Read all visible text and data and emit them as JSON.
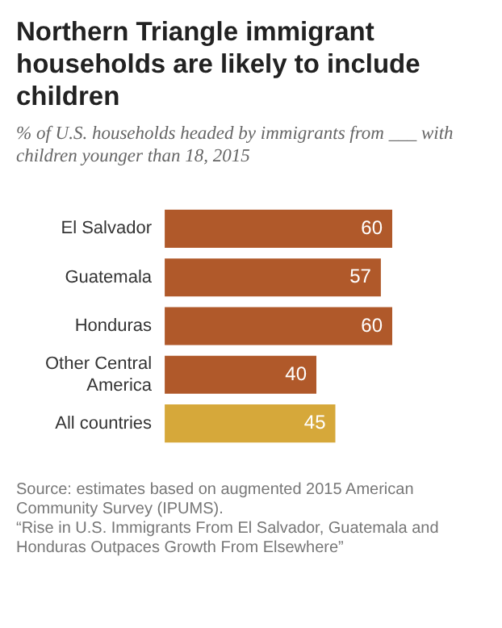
{
  "chart_data": {
    "type": "bar",
    "orientation": "horizontal",
    "title": "Northern Triangle immigrant households are likely to include children",
    "subtitle": "% of U.S. households headed by immigrants from ___ with children younger than 18, 2015",
    "categories": [
      "El Salvador",
      "Guatemala",
      "Honduras",
      "Other Central America",
      "All countries"
    ],
    "values": [
      60,
      57,
      60,
      40,
      45
    ],
    "colors": [
      "#b0592a",
      "#b0592a",
      "#b0592a",
      "#b0592a",
      "#d6a83a"
    ],
    "data_labels": true,
    "grid": false,
    "legend": false,
    "tick_labels": "y",
    "annotations": [
      "Source: estimates based on augmented 2015 American Community Survey (IPUMS).",
      "“Rise in U.S. Immigrants From El Salvador, Guatemala and Honduras Outpaces Growth From Elsewhere”"
    ]
  }
}
